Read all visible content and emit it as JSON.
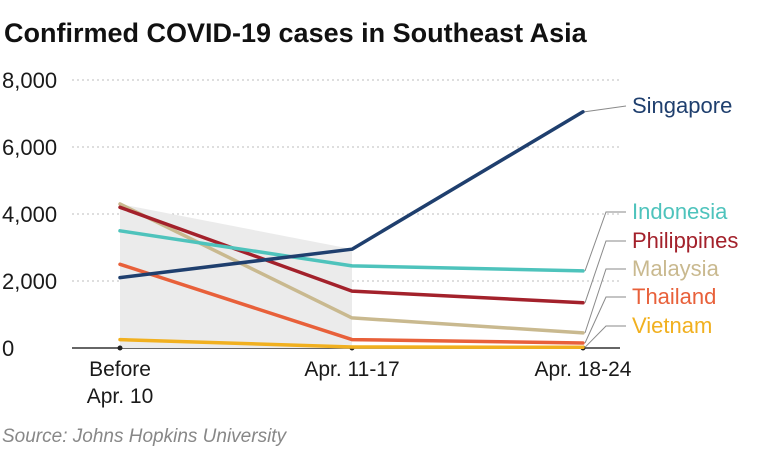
{
  "chart_data": {
    "type": "line",
    "title": "Confirmed COVID-19 cases in Southeast Asia",
    "source": "Source: Johns Hopkins University",
    "categories": [
      "Before\nApr. 10",
      "Apr. 11-17",
      "Apr. 18-24"
    ],
    "category_lines": [
      [
        "Before",
        "Apr. 10"
      ],
      [
        "Apr. 11-17"
      ],
      [
        "Apr. 18-24"
      ]
    ],
    "ylim": [
      0,
      8000
    ],
    "yticks": [
      0,
      2000,
      4000,
      6000,
      8000
    ],
    "ytick_labels": [
      "0",
      "2,000",
      "4,000",
      "6,000",
      "8,000"
    ],
    "grid": true,
    "shaded_region": {
      "from": "Before\nApr. 10",
      "to": "Apr. 11-17"
    },
    "legend_placement": "right",
    "series": [
      {
        "name": "Singapore",
        "values": [
          2100,
          2950,
          7050
        ],
        "color": "#1f3f6e"
      },
      {
        "name": "Indonesia",
        "values": [
          3500,
          2450,
          2300
        ],
        "color": "#4ec3bc"
      },
      {
        "name": "Philippines",
        "values": [
          4200,
          1700,
          1350
        ],
        "color": "#a3212b"
      },
      {
        "name": "Malaysia",
        "values": [
          4300,
          900,
          450
        ],
        "color": "#c9b98f"
      },
      {
        "name": "Thailand",
        "values": [
          2500,
          250,
          150
        ],
        "color": "#e8603a"
      },
      {
        "name": "Vietnam",
        "values": [
          250,
          30,
          20
        ],
        "color": "#f1b01f"
      }
    ]
  }
}
